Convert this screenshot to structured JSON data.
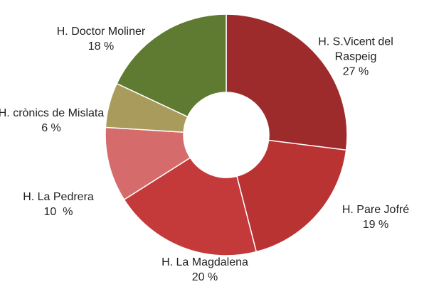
{
  "chart_data": {
    "type": "pie",
    "categories": [
      "H. S.Vicent del Raspeig",
      "H. Pare Jofré",
      "H. La Magdalena",
      "H. La Pedrera",
      "H. crònics de Mislata",
      "H. Doctor Moliner"
    ],
    "values": [
      27,
      19,
      20,
      10,
      6,
      18
    ],
    "value_labels": [
      "27 %",
      "19 %",
      "20 %",
      "10  %",
      "6 %",
      "18 %"
    ],
    "colors": [
      "#9e2b2b",
      "#b93333",
      "#c43a3a",
      "#d56b6b",
      "#a99b5c",
      "#5e7b31"
    ],
    "donut": true
  }
}
